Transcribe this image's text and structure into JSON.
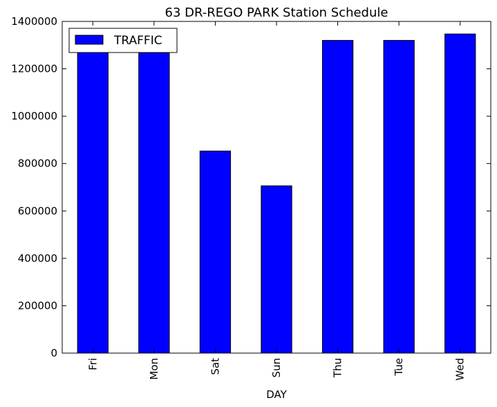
{
  "chart_data": {
    "type": "bar",
    "title": "63 DR-REGO PARK Station Schedule",
    "xlabel": "DAY",
    "ylabel": "",
    "categories": [
      "Fri",
      "Mon",
      "Sat",
      "Sun",
      "Thu",
      "Tue",
      "Wed"
    ],
    "series": [
      {
        "name": "TRAFFIC",
        "color": "#0000ff",
        "values": [
          1275000,
          1268000,
          853000,
          706000,
          1320000,
          1320000,
          1347000
        ]
      }
    ],
    "ylim": [
      0,
      1400000
    ],
    "yticks": [
      0,
      200000,
      400000,
      600000,
      800000,
      1000000,
      1200000,
      1400000
    ],
    "ytick_labels": [
      "0",
      "200000",
      "400000",
      "600000",
      "800000",
      "1000000",
      "1200000",
      "1400000"
    ],
    "legend": {
      "position": "upper-left"
    },
    "grid": false
  }
}
